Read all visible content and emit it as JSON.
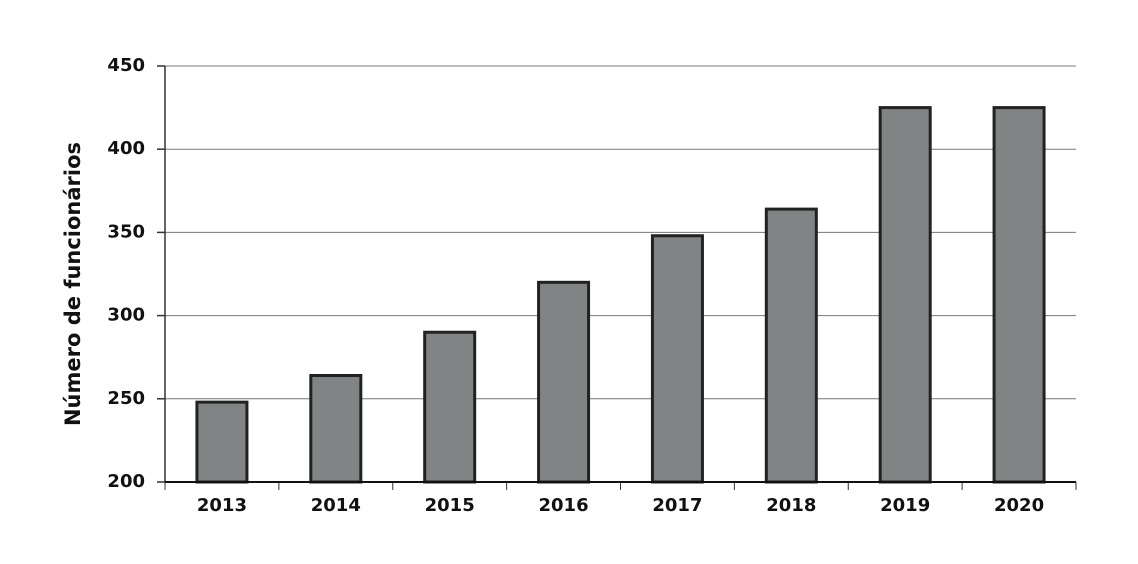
{
  "chart_data": {
    "type": "bar",
    "y_label": "Número de funcionários",
    "categories": [
      "2013",
      "2014",
      "2015",
      "2016",
      "2017",
      "2018",
      "2019",
      "2020"
    ],
    "values": [
      248,
      264,
      290,
      320,
      348,
      364,
      425,
      425
    ],
    "color": "#808485",
    "ylim": [
      200,
      450
    ],
    "yticks": [
      200,
      250,
      300,
      350,
      400,
      450
    ],
    "grid": true
  }
}
